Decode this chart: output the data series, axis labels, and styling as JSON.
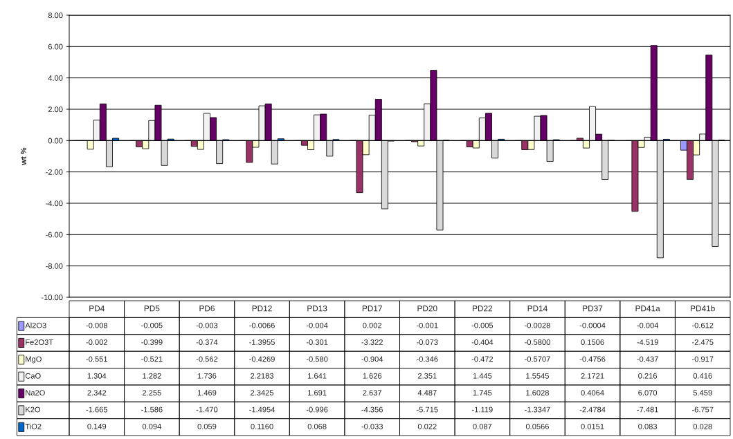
{
  "chart_data": {
    "type": "bar",
    "ylabel": "wt %",
    "categories": [
      "PD4",
      "PD5",
      "PD6",
      "PD12",
      "PD13",
      "PD17",
      "PD20",
      "PD22",
      "PD14",
      "PD37",
      "PD41a",
      "PD41b"
    ],
    "series": [
      {
        "name": "Al2O3",
        "color": "#9999ff",
        "values": [
          -0.008,
          -0.005,
          -0.003,
          -0.0066,
          -0.004,
          0.002,
          -0.001,
          -0.005,
          -0.0028,
          -0.0004,
          -0.004,
          -0.612
        ],
        "value_labels": [
          "-0.008",
          "-0.005",
          "-0.003",
          "-0.0066",
          "-0.004",
          "0.002",
          "-0.001",
          "-0.005",
          "-0.0028",
          "-0.0004",
          "-0.004",
          "-0.612"
        ]
      },
      {
        "name": "Fe2O3T",
        "color": "#993366",
        "values": [
          -0.002,
          -0.399,
          -0.374,
          -1.3955,
          -0.301,
          -3.322,
          -0.073,
          -0.404,
          -0.58,
          0.1506,
          -4.519,
          -2.475
        ],
        "value_labels": [
          "-0.002",
          "-0.399",
          "-0.374",
          "-1.3955",
          "-0.301",
          "-3.322",
          "-0.073",
          "-0.404",
          "-0.5800",
          "0.1506",
          "-4.519",
          "-2.475"
        ]
      },
      {
        "name": "MgO",
        "color": "#ffffcc",
        "values": [
          -0.551,
          -0.521,
          -0.562,
          -0.4269,
          -0.58,
          -0.904,
          -0.346,
          -0.472,
          -0.5707,
          -0.4756,
          -0.437,
          -0.917
        ],
        "value_labels": [
          "-0.551",
          "-0.521",
          "-0.562",
          "-0.4269",
          "-0.580",
          "-0.904",
          "-0.346",
          "-0.472",
          "-0.5707",
          "-0.4756",
          "-0.437",
          "-0.917"
        ]
      },
      {
        "name": "CaO",
        "color": "#f2f2f2",
        "values": [
          1.304,
          1.282,
          1.736,
          2.2183,
          1.641,
          1.626,
          2.351,
          1.445,
          1.5545,
          2.1721,
          0.216,
          0.416
        ],
        "value_labels": [
          "1.304",
          "1.282",
          "1.736",
          "2.2183",
          "1.641",
          "1.626",
          "2.351",
          "1.445",
          "1.5545",
          "2.1721",
          "0.216",
          "0.416"
        ]
      },
      {
        "name": "Na2O",
        "color": "#660066",
        "values": [
          2.342,
          2.255,
          1.469,
          2.3425,
          1.691,
          2.637,
          4.487,
          1.745,
          1.6028,
          0.4064,
          6.07,
          5.459
        ],
        "value_labels": [
          "2.342",
          "2.255",
          "1.469",
          "2.3425",
          "1.691",
          "2.637",
          "4.487",
          "1.745",
          "1.6028",
          "0.4064",
          "6.070",
          "5.459"
        ]
      },
      {
        "name": "K2O",
        "color": "#d9d9d9",
        "values": [
          -1.665,
          -1.586,
          -1.47,
          -1.4954,
          -0.996,
          -4.356,
          -5.715,
          -1.119,
          -1.3347,
          -2.4784,
          -7.481,
          -6.757
        ],
        "value_labels": [
          "-1.665",
          "-1.586",
          "-1.470",
          "-1.4954",
          "-0.996",
          "-4.356",
          "-5.715",
          "-1.119",
          "-1.3347",
          "-2.4784",
          "-7.481",
          "-6.757"
        ]
      },
      {
        "name": "TiO2",
        "color": "#0066cc",
        "values": [
          0.149,
          0.094,
          0.059,
          0.116,
          0.068,
          -0.033,
          0.022,
          0.087,
          0.0566,
          0.0151,
          0.083,
          0.028
        ],
        "value_labels": [
          "0.149",
          "0.094",
          "0.059",
          "0.1160",
          "0.068",
          "-0.033",
          "0.022",
          "0.087",
          "0.0566",
          "0.0151",
          "0.083",
          "0.028"
        ]
      }
    ],
    "ylim": [
      -10,
      8
    ],
    "yticks": [
      {
        "value": -10,
        "label": "-10.00"
      },
      {
        "value": -8,
        "label": "-8.00"
      },
      {
        "value": -6,
        "label": "-6.00"
      },
      {
        "value": -4,
        "label": "-4.00"
      },
      {
        "value": -2,
        "label": "-2.00"
      },
      {
        "value": 0,
        "label": "0.00"
      },
      {
        "value": 2,
        "label": "2.00"
      },
      {
        "value": 4,
        "label": "4.00"
      },
      {
        "value": 6,
        "label": "6.00"
      },
      {
        "value": 8,
        "label": "8.00"
      }
    ],
    "grid": "y",
    "legend": "bottom"
  }
}
